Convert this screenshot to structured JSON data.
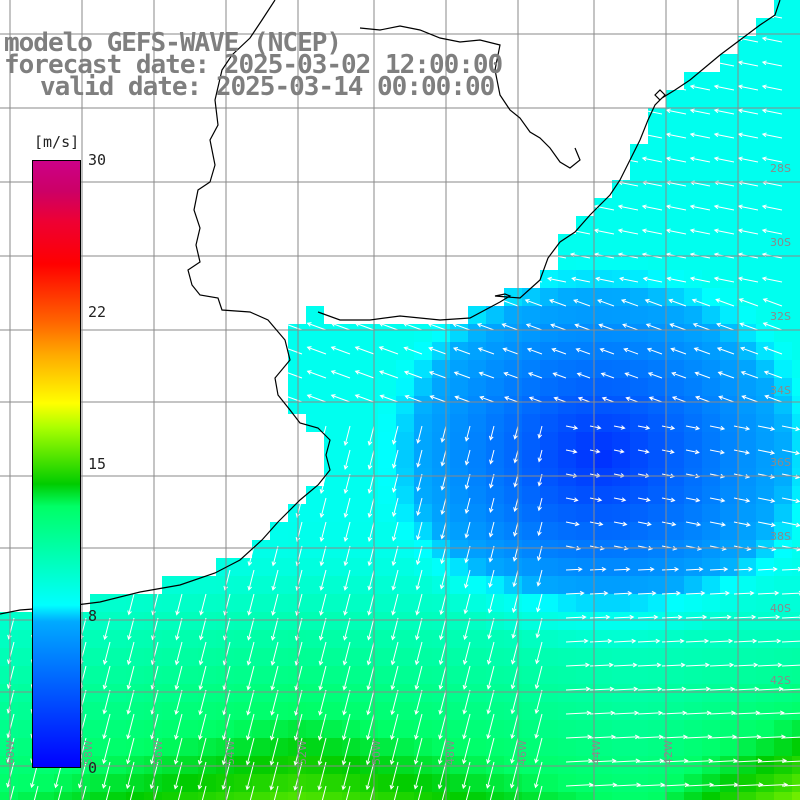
{
  "title": {
    "line1": "modelo GEFS-WAVE (NCEP)",
    "line2": "forecast date: 2025-03-02 12:00:00",
    "line3": "valid date: 2025-03-14 00:00:00"
  },
  "colorbar": {
    "unit": "[m/s]",
    "ticks": [
      {
        "label": "30",
        "value": 30
      },
      {
        "label": "22",
        "value": 22
      },
      {
        "label": "15",
        "value": 15
      },
      {
        "label": "8",
        "value": 8
      },
      {
        "label": "0",
        "value": 0
      }
    ],
    "min": 0,
    "max": 30
  },
  "lon_labels": [
    "60W",
    "58W",
    "56W",
    "54W",
    "52W",
    "50W",
    "48W",
    "46W",
    "44W",
    "42W"
  ],
  "lat_labels": [
    "28S",
    "30S",
    "32S",
    "34S",
    "36S",
    "38S",
    "40S",
    "42S"
  ],
  "colors": {
    "land": "#ffffff",
    "coast": "#000000",
    "grid": "#8a8a8a",
    "arrow": "#ffffff",
    "title": "#7f7f7f"
  }
}
